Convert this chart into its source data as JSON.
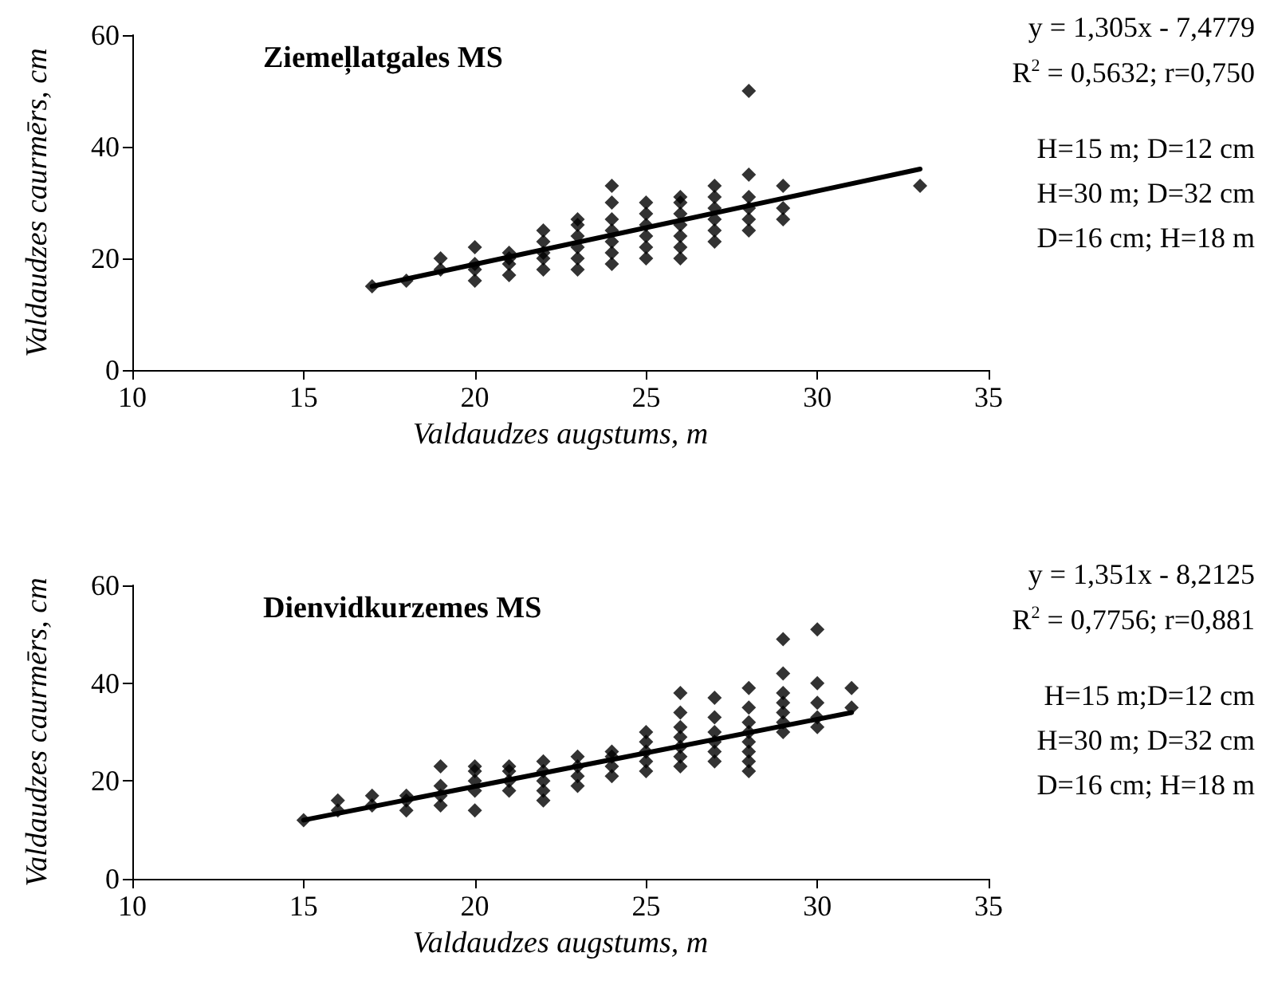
{
  "chart_data": [
    {
      "type": "scatter",
      "title": "Ziemeļlatgales MS",
      "xlabel": "Valdaudzes augstums, m",
      "ylabel": "Valdaudzes caurmērs, cm",
      "xlim": [
        10,
        35
      ],
      "xticks": [
        10,
        15,
        20,
        25,
        30,
        35
      ],
      "ylim": [
        0,
        60
      ],
      "yticks": [
        0,
        20,
        40,
        60
      ],
      "grid": false,
      "marker": "diamond",
      "annotations": [
        "y = 1,305x - 7,4779",
        "R$^{2}$ = 0,5632; r=0,750",
        "H=15 m; D=12 cm",
        "H=30 m; D=32 cm",
        "D=16 cm; H=18 m"
      ],
      "series": [
        {
          "type": "scatter",
          "color": "#000000",
          "x": [
            17,
            18,
            19,
            19,
            20,
            20,
            20,
            20,
            21,
            21,
            21,
            21,
            22,
            22,
            22,
            22,
            22,
            23,
            23,
            23,
            23,
            23,
            23,
            24,
            24,
            24,
            24,
            24,
            24,
            24,
            25,
            25,
            25,
            25,
            25,
            25,
            26,
            26,
            26,
            26,
            26,
            26,
            26,
            27,
            27,
            27,
            27,
            27,
            27,
            28,
            28,
            28,
            28,
            28,
            28,
            29,
            29,
            29,
            33
          ],
          "values": [
            15,
            16,
            18,
            20,
            16,
            18,
            19,
            22,
            17,
            19,
            20,
            21,
            18,
            20,
            21,
            23,
            25,
            18,
            20,
            22,
            24,
            26,
            27,
            19,
            21,
            23,
            25,
            27,
            30,
            33,
            20,
            22,
            24,
            26,
            28,
            30,
            20,
            22,
            24,
            26,
            28,
            30,
            31,
            23,
            25,
            27,
            29,
            31,
            33,
            25,
            27,
            29,
            31,
            35,
            50,
            27,
            29,
            33,
            33
          ]
        },
        {
          "type": "line",
          "color": "#000000",
          "marker": "none",
          "line_style": "solid",
          "x": [
            17,
            33
          ],
          "values": [
            15,
            36
          ]
        }
      ]
    },
    {
      "type": "scatter",
      "title": "Dienvidkurzemes MS",
      "xlabel": "Valdaudzes augstums, m",
      "ylabel": "Valdaudzes caurmērs, cm",
      "xlim": [
        10,
        35
      ],
      "xticks": [
        10,
        15,
        20,
        25,
        30,
        35
      ],
      "ylim": [
        0,
        60
      ],
      "yticks": [
        0,
        20,
        40,
        60
      ],
      "grid": false,
      "marker": "diamond",
      "annotations": [
        "y = 1,351x - 8,2125",
        "R$^{2}$ = 0,7756; r=0,881",
        "H=15 m;D=12 cm",
        "H=30 m; D=32 cm",
        "D=16 cm; H=18 m"
      ],
      "series": [
        {
          "type": "scatter",
          "color": "#000000",
          "x": [
            15,
            16,
            16,
            17,
            17,
            18,
            18,
            18,
            19,
            19,
            19,
            19,
            20,
            20,
            20,
            20,
            20,
            21,
            21,
            21,
            21,
            22,
            22,
            22,
            22,
            22,
            23,
            23,
            23,
            23,
            24,
            24,
            24,
            24,
            25,
            25,
            25,
            25,
            25,
            26,
            26,
            26,
            26,
            26,
            26,
            26,
            27,
            27,
            27,
            27,
            27,
            27,
            28,
            28,
            28,
            28,
            28,
            28,
            28,
            28,
            29,
            29,
            29,
            29,
            29,
            29,
            29,
            30,
            30,
            30,
            30,
            30,
            31,
            31
          ],
          "values": [
            12,
            14,
            16,
            15,
            17,
            14,
            16,
            17,
            15,
            17,
            19,
            23,
            14,
            18,
            20,
            22,
            23,
            18,
            20,
            22,
            23,
            16,
            18,
            20,
            22,
            24,
            19,
            21,
            23,
            25,
            21,
            23,
            25,
            26,
            22,
            24,
            26,
            28,
            30,
            23,
            25,
            27,
            29,
            31,
            34,
            38,
            24,
            26,
            28,
            30,
            33,
            37,
            22,
            24,
            26,
            28,
            30,
            32,
            35,
            39,
            30,
            32,
            34,
            36,
            38,
            42,
            49,
            31,
            33,
            36,
            40,
            51,
            35,
            39
          ]
        },
        {
          "type": "line",
          "color": "#000000",
          "marker": "none",
          "line_style": "solid",
          "x": [
            15,
            31
          ],
          "values": [
            12,
            34
          ]
        }
      ]
    }
  ]
}
